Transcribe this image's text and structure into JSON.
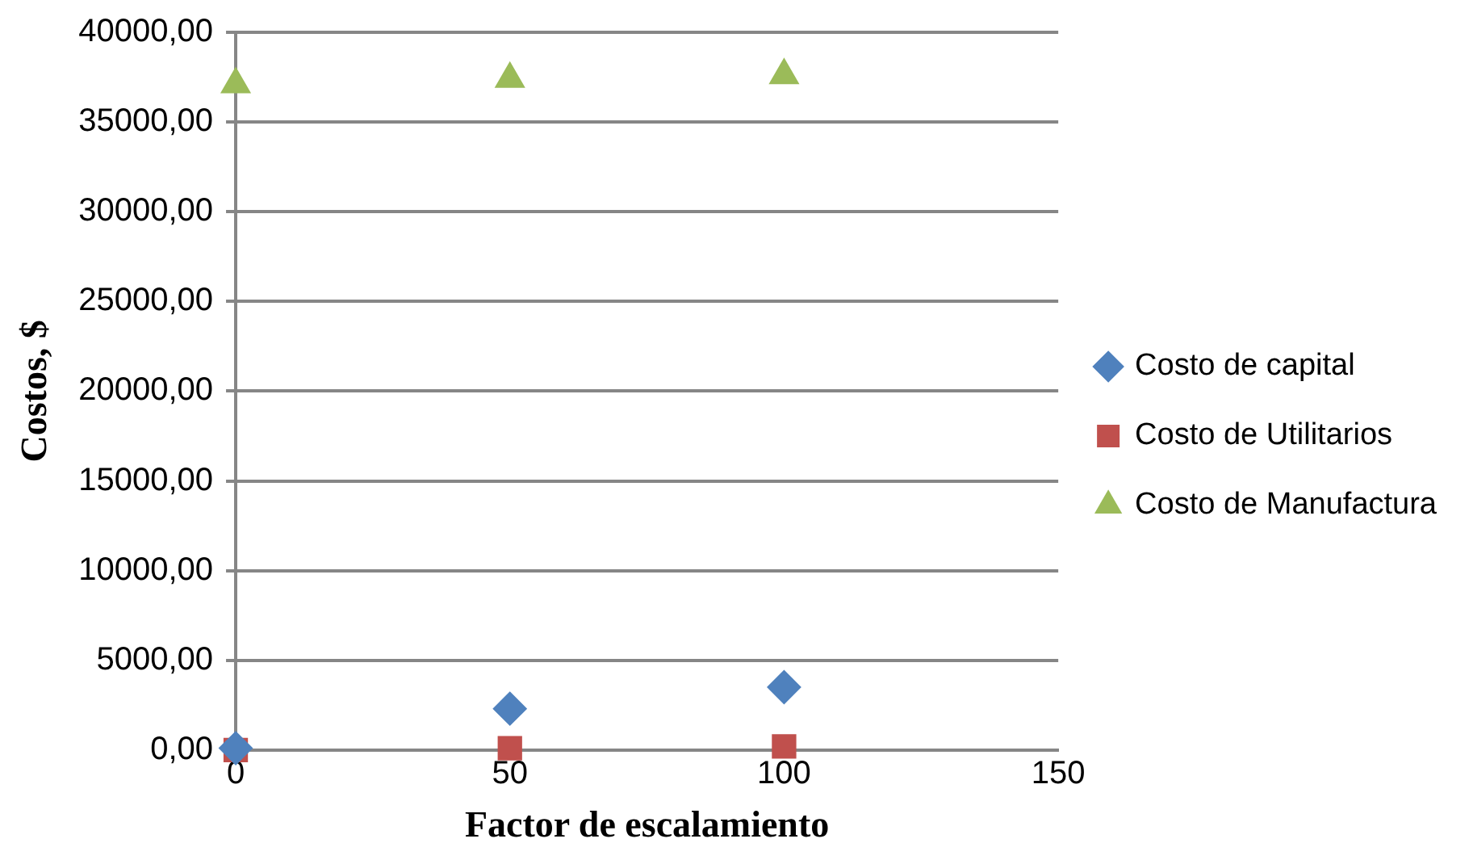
{
  "chart_data": {
    "type": "scatter",
    "xlabel": "Factor de escalamiento",
    "ylabel": "Costos, $",
    "x": [
      0,
      50,
      100
    ],
    "series": [
      {
        "name": "Costo de capital",
        "color": "#4f81bd",
        "marker": "diamond",
        "values": [
          100,
          2300,
          3500
        ]
      },
      {
        "name": "Costo de Utilitarios",
        "color": "#c0504d",
        "marker": "square",
        "values": [
          0,
          100,
          200
        ]
      },
      {
        "name": "Costo de Manufactura",
        "color": "#9bbb59",
        "marker": "triangle",
        "values": [
          37100,
          37400,
          37600
        ]
      }
    ],
    "xlim": [
      0,
      150
    ],
    "xticks": [
      0,
      50,
      100,
      150
    ],
    "ylim": [
      0,
      40000
    ],
    "yticks": [
      {
        "value": 0,
        "label": "0,00"
      },
      {
        "value": 5000,
        "label": "5000,00"
      },
      {
        "value": 10000,
        "label": "10000,00"
      },
      {
        "value": 15000,
        "label": "15000,00"
      },
      {
        "value": 20000,
        "label": "20000,00"
      },
      {
        "value": 25000,
        "label": "25000,00"
      },
      {
        "value": 30000,
        "label": "30000,00"
      },
      {
        "value": 35000,
        "label": "35000,00"
      },
      {
        "value": 40000,
        "label": "40000,00"
      }
    ],
    "grid": "y",
    "legend": "right"
  }
}
